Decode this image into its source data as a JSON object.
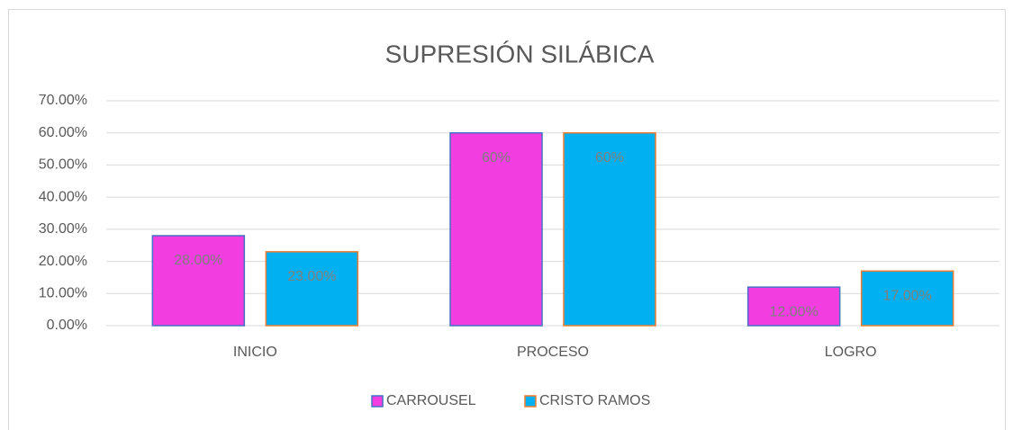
{
  "chart_data": {
    "type": "bar",
    "title": "SUPRESIÓN SILÁBICA",
    "categories": [
      "INICIO",
      "PROCESO",
      "LOGRO"
    ],
    "series": [
      {
        "name": "CARROUSEL",
        "color": "#f23de0",
        "edgecolor": "#4472c4",
        "values": [
          28,
          60,
          12
        ],
        "value_labels": [
          "28.00%",
          "60%",
          "12.00%"
        ]
      },
      {
        "name": "CRISTO RAMOS",
        "color": "#00b0f0",
        "edgecolor": "#ed7d31",
        "values": [
          23,
          60,
          17
        ],
        "value_labels": [
          "23.00%",
          "60%",
          "17.00%"
        ]
      }
    ],
    "ylim": [
      0,
      70
    ],
    "yticks": [
      {
        "value": 0,
        "label": "0.00%"
      },
      {
        "value": 10,
        "label": "10.00%"
      },
      {
        "value": 20,
        "label": "20.00%"
      },
      {
        "value": 30,
        "label": "30.00%"
      },
      {
        "value": 40,
        "label": "40.00%"
      },
      {
        "value": 50,
        "label": "50.00%"
      },
      {
        "value": 60,
        "label": "60.00%"
      },
      {
        "value": 70,
        "label": "70.00%"
      }
    ],
    "grid": true,
    "legend": "bottom"
  }
}
